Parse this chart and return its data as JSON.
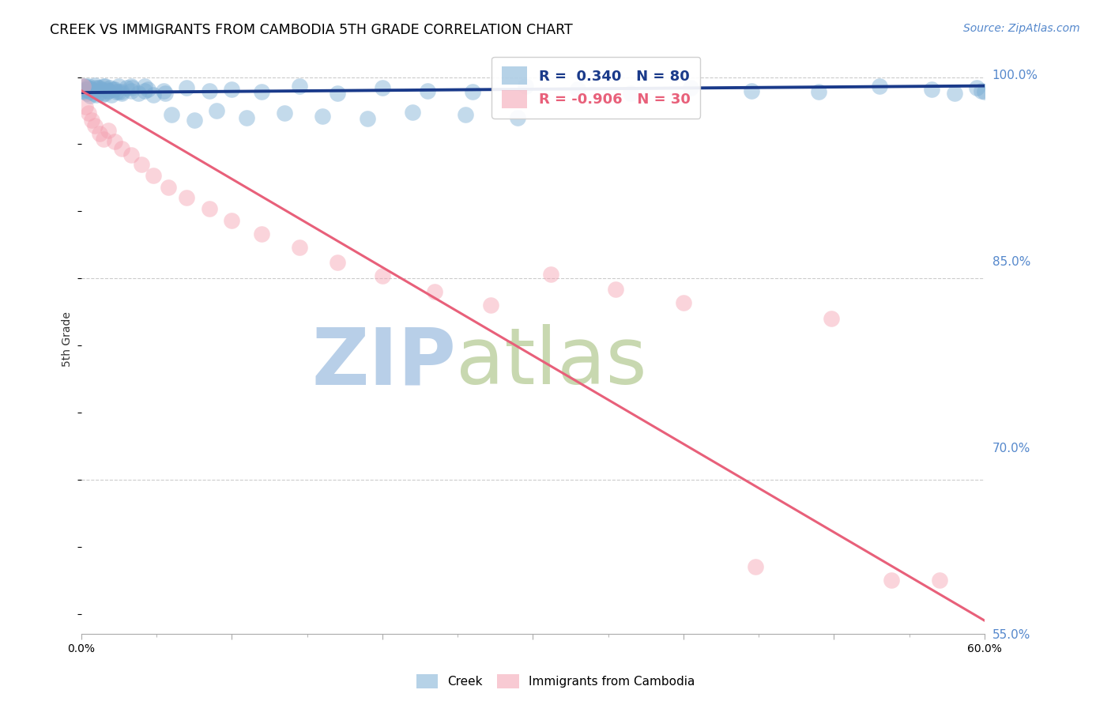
{
  "title": "CREEK VS IMMIGRANTS FROM CAMBODIA 5TH GRADE CORRELATION CHART",
  "source": "Source: ZipAtlas.com",
  "ylabel": "5th Grade",
  "ytick_labels": [
    "100.0%",
    "85.0%",
    "70.0%",
    "55.0%"
  ],
  "ytick_values": [
    1.0,
    0.85,
    0.7,
    0.55
  ],
  "x_min": 0.0,
  "x_max": 0.6,
  "y_min": 0.585,
  "y_max": 1.025,
  "blue_label": "Creek",
  "pink_label": "Immigrants from Cambodia",
  "blue_R": 0.34,
  "blue_N": 80,
  "pink_R": -0.906,
  "pink_N": 30,
  "blue_color": "#7aadd4",
  "pink_color": "#f4a0b0",
  "blue_line_color": "#1a3a8a",
  "pink_line_color": "#e8607a",
  "watermark_zip": "ZIP",
  "watermark_atlas": "atlas",
  "watermark_color_zip": "#b8cfe8",
  "watermark_color_atlas": "#c8d8b0",
  "legend_blue_text": "R =  0.340   N = 80",
  "legend_pink_text": "R = -0.906   N = 30",
  "blue_x": [
    0.001,
    0.002,
    0.003,
    0.004,
    0.005,
    0.006,
    0.007,
    0.008,
    0.009,
    0.01,
    0.011,
    0.012,
    0.013,
    0.014,
    0.015,
    0.016,
    0.017,
    0.018,
    0.019,
    0.02,
    0.022,
    0.023,
    0.025,
    0.027,
    0.03,
    0.033,
    0.038,
    0.042,
    0.048,
    0.055,
    0.002,
    0.004,
    0.006,
    0.009,
    0.012,
    0.016,
    0.021,
    0.027,
    0.034,
    0.042,
    0.003,
    0.005,
    0.008,
    0.012,
    0.018,
    0.025,
    0.033,
    0.044,
    0.056,
    0.07,
    0.085,
    0.1,
    0.12,
    0.145,
    0.17,
    0.2,
    0.23,
    0.26,
    0.295,
    0.33,
    0.365,
    0.405,
    0.445,
    0.49,
    0.53,
    0.565,
    0.58,
    0.595,
    0.598,
    0.6,
    0.06,
    0.075,
    0.09,
    0.11,
    0.135,
    0.16,
    0.19,
    0.22,
    0.255,
    0.29
  ],
  "blue_y": [
    0.99,
    0.989,
    0.993,
    0.988,
    0.992,
    0.986,
    0.991,
    0.99,
    0.994,
    0.987,
    0.992,
    0.989,
    0.991,
    0.987,
    0.993,
    0.988,
    0.991,
    0.99,
    0.992,
    0.987,
    0.991,
    0.989,
    0.993,
    0.988,
    0.992,
    0.99,
    0.988,
    0.993,
    0.987,
    0.99,
    0.993,
    0.991,
    0.989,
    0.992,
    0.988,
    0.993,
    0.991,
    0.989,
    0.992,
    0.99,
    0.991,
    0.993,
    0.988,
    0.992,
    0.99,
    0.989,
    0.993,
    0.991,
    0.988,
    0.992,
    0.99,
    0.991,
    0.989,
    0.993,
    0.988,
    0.992,
    0.99,
    0.989,
    0.993,
    0.991,
    0.988,
    0.992,
    0.99,
    0.989,
    0.993,
    0.991,
    0.988,
    0.992,
    0.99,
    0.989,
    0.972,
    0.968,
    0.975,
    0.97,
    0.973,
    0.971,
    0.969,
    0.974,
    0.972,
    0.97
  ],
  "pink_x": [
    0.001,
    0.003,
    0.005,
    0.007,
    0.009,
    0.012,
    0.015,
    0.018,
    0.022,
    0.027,
    0.033,
    0.04,
    0.048,
    0.058,
    0.07,
    0.085,
    0.1,
    0.12,
    0.145,
    0.17,
    0.2,
    0.235,
    0.272,
    0.312,
    0.355,
    0.4,
    0.448,
    0.498,
    0.538,
    0.57
  ],
  "pink_y": [
    0.993,
    0.978,
    0.973,
    0.968,
    0.964,
    0.958,
    0.954,
    0.96,
    0.952,
    0.947,
    0.942,
    0.935,
    0.927,
    0.918,
    0.91,
    0.902,
    0.893,
    0.883,
    0.873,
    0.862,
    0.852,
    0.84,
    0.83,
    0.853,
    0.842,
    0.832,
    0.635,
    0.82,
    0.625,
    0.625
  ],
  "blue_trend_x0": 0.0,
  "blue_trend_x1": 0.6,
  "blue_trend_y0": 0.9885,
  "blue_trend_y1": 0.9935,
  "pink_trend_x0": 0.0,
  "pink_trend_x1": 0.6,
  "pink_trend_y0": 0.99,
  "pink_trend_y1": 0.595
}
